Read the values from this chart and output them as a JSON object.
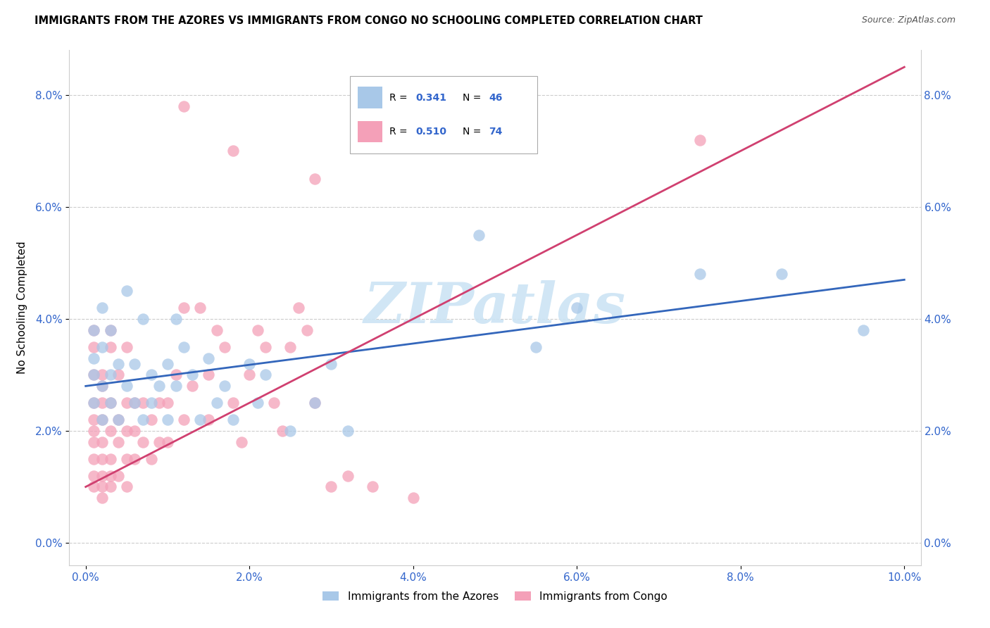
{
  "title": "IMMIGRANTS FROM THE AZORES VS IMMIGRANTS FROM CONGO NO SCHOOLING COMPLETED CORRELATION CHART",
  "source": "Source: ZipAtlas.com",
  "ylabel": "No Schooling Completed",
  "xlim": [
    0,
    0.1
  ],
  "ylim": [
    0,
    0.085
  ],
  "yticks": [
    0.0,
    0.02,
    0.04,
    0.06,
    0.08
  ],
  "xticks": [
    0.0,
    0.02,
    0.04,
    0.06,
    0.08,
    0.1
  ],
  "blue_R": 0.341,
  "blue_N": 46,
  "pink_R": 0.51,
  "pink_N": 74,
  "blue_color": "#a8c8e8",
  "pink_color": "#f4a0b8",
  "blue_line_color": "#3366bb",
  "pink_line_color": "#d04070",
  "watermark_text": "ZIPatlas",
  "watermark_color": "#cce4f4",
  "legend_blue_label": "Immigrants from the Azores",
  "legend_pink_label": "Immigrants from Congo",
  "blue_scatter_x": [
    0.001,
    0.001,
    0.001,
    0.001,
    0.002,
    0.002,
    0.002,
    0.002,
    0.003,
    0.003,
    0.003,
    0.004,
    0.004,
    0.005,
    0.005,
    0.006,
    0.006,
    0.007,
    0.007,
    0.008,
    0.008,
    0.009,
    0.01,
    0.01,
    0.011,
    0.011,
    0.012,
    0.013,
    0.014,
    0.015,
    0.016,
    0.017,
    0.018,
    0.02,
    0.021,
    0.022,
    0.025,
    0.028,
    0.03,
    0.032,
    0.048,
    0.055,
    0.06,
    0.075,
    0.085,
    0.095
  ],
  "blue_scatter_y": [
    0.03,
    0.038,
    0.033,
    0.025,
    0.035,
    0.028,
    0.022,
    0.042,
    0.03,
    0.038,
    0.025,
    0.032,
    0.022,
    0.045,
    0.028,
    0.032,
    0.025,
    0.04,
    0.022,
    0.03,
    0.025,
    0.028,
    0.032,
    0.022,
    0.04,
    0.028,
    0.035,
    0.03,
    0.022,
    0.033,
    0.025,
    0.028,
    0.022,
    0.032,
    0.025,
    0.03,
    0.02,
    0.025,
    0.032,
    0.02,
    0.055,
    0.035,
    0.042,
    0.048,
    0.048,
    0.038
  ],
  "pink_scatter_x": [
    0.001,
    0.001,
    0.001,
    0.001,
    0.001,
    0.001,
    0.001,
    0.001,
    0.001,
    0.001,
    0.002,
    0.002,
    0.002,
    0.002,
    0.002,
    0.002,
    0.002,
    0.002,
    0.002,
    0.003,
    0.003,
    0.003,
    0.003,
    0.003,
    0.003,
    0.003,
    0.004,
    0.004,
    0.004,
    0.004,
    0.005,
    0.005,
    0.005,
    0.005,
    0.005,
    0.006,
    0.006,
    0.006,
    0.007,
    0.007,
    0.008,
    0.008,
    0.009,
    0.009,
    0.01,
    0.01,
    0.011,
    0.012,
    0.012,
    0.013,
    0.014,
    0.015,
    0.015,
    0.016,
    0.017,
    0.018,
    0.019,
    0.02,
    0.021,
    0.022,
    0.023,
    0.024,
    0.025,
    0.026,
    0.027,
    0.028,
    0.03,
    0.032,
    0.035,
    0.04,
    0.012,
    0.018,
    0.028,
    0.075
  ],
  "pink_scatter_y": [
    0.025,
    0.02,
    0.018,
    0.015,
    0.012,
    0.03,
    0.035,
    0.038,
    0.022,
    0.01,
    0.022,
    0.028,
    0.018,
    0.015,
    0.012,
    0.03,
    0.025,
    0.01,
    0.008,
    0.025,
    0.02,
    0.015,
    0.012,
    0.035,
    0.038,
    0.01,
    0.022,
    0.03,
    0.018,
    0.012,
    0.025,
    0.02,
    0.015,
    0.035,
    0.01,
    0.025,
    0.02,
    0.015,
    0.025,
    0.018,
    0.022,
    0.015,
    0.025,
    0.018,
    0.025,
    0.018,
    0.03,
    0.022,
    0.042,
    0.028,
    0.042,
    0.03,
    0.022,
    0.038,
    0.035,
    0.025,
    0.018,
    0.03,
    0.038,
    0.035,
    0.025,
    0.02,
    0.035,
    0.042,
    0.038,
    0.025,
    0.01,
    0.012,
    0.01,
    0.008,
    0.078,
    0.07,
    0.065,
    0.072
  ],
  "blue_line_x": [
    0.0,
    0.1
  ],
  "blue_line_y": [
    0.028,
    0.047
  ],
  "pink_line_x": [
    0.0,
    0.1
  ],
  "pink_line_y": [
    0.01,
    0.085
  ]
}
